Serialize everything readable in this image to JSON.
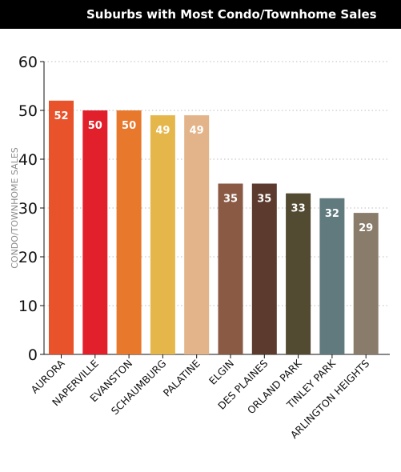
{
  "chart_data": {
    "type": "bar",
    "title": "Suburbs with Most Condo/Townhome Sales",
    "ylabel": "CONDO/TOWNHOME SALES",
    "xlabel": "",
    "ylim": [
      0,
      60
    ],
    "yticks": [
      0,
      10,
      20,
      30,
      40,
      50,
      60
    ],
    "grid": true,
    "categories": [
      "AURORA",
      "NAPERVILLE",
      "EVANSTON",
      "SCHAUMBURG",
      "PALATINE",
      "ELGIN",
      "DES PLAINES",
      "ORLAND PARK",
      "TINLEY PARK",
      "ARLINGTON HEIGHTS"
    ],
    "values": [
      52,
      50,
      50,
      49,
      49,
      35,
      35,
      33,
      32,
      29
    ],
    "colors": [
      "#e8532b",
      "#e2202b",
      "#e8782c",
      "#e5b64a",
      "#e3b489",
      "#8a5a45",
      "#5c3a2e",
      "#524a31",
      "#607a7d",
      "#8a7c6b"
    ]
  }
}
